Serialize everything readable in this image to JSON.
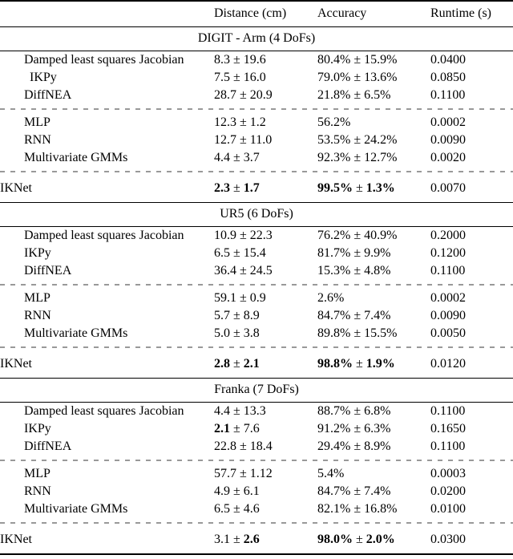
{
  "table": {
    "pm": "±",
    "header": {
      "method": "",
      "distance": "Distance (cm)",
      "accuracy": "Accuracy",
      "runtime": "Runtime (s)"
    },
    "sections": [
      {
        "title": "DIGIT - Arm (4 DoFs)",
        "groups": [
          {
            "rows": [
              {
                "method": "Damped least squares Jacobian",
                "indent": false,
                "distance": {
                  "mean": "8.3",
                  "std": "19.6",
                  "bold": "none"
                },
                "accuracy": {
                  "mean": "80.4%",
                  "std": "15.9%",
                  "bold": "none"
                },
                "runtime": "0.0400"
              },
              {
                "method": "IKPy",
                "indent": true,
                "distance": {
                  "mean": "7.5",
                  "std": "16.0",
                  "bold": "none"
                },
                "accuracy": {
                  "mean": "79.0%",
                  "std": "13.6%",
                  "bold": "none"
                },
                "runtime": "0.0850"
              },
              {
                "method": "DiffNEA",
                "indent": false,
                "distance": {
                  "mean": "28.7",
                  "std": "20.9",
                  "bold": "none"
                },
                "accuracy": {
                  "mean": "21.8%",
                  "std": "6.5%",
                  "bold": "none"
                },
                "runtime": "0.1100"
              }
            ]
          },
          {
            "rows": [
              {
                "method": "MLP",
                "indent": false,
                "distance": {
                  "mean": "12.3",
                  "std": "1.2",
                  "bold": "none"
                },
                "accuracy": {
                  "mean": "56.2%",
                  "std": null,
                  "bold": "none"
                },
                "runtime": "0.0002"
              },
              {
                "method": "RNN",
                "indent": false,
                "distance": {
                  "mean": "12.7",
                  "std": "11.0",
                  "bold": "none"
                },
                "accuracy": {
                  "mean": "53.5%",
                  "std": "24.2%",
                  "bold": "none"
                },
                "runtime": "0.0090"
              },
              {
                "method": "Multivariate GMMs",
                "indent": false,
                "distance": {
                  "mean": "4.4",
                  "std": "3.7",
                  "bold": "none"
                },
                "accuracy": {
                  "mean": "92.3%",
                  "std": "12.7%",
                  "bold": "none"
                },
                "runtime": "0.0020"
              }
            ]
          },
          {
            "rows": [
              {
                "method": "IKNet",
                "indent": false,
                "distance": {
                  "mean": "2.3",
                  "std": "1.7",
                  "bold": "both"
                },
                "accuracy": {
                  "mean": "99.5%",
                  "std": "1.3%",
                  "bold": "both"
                },
                "runtime": "0.0070"
              }
            ]
          }
        ]
      },
      {
        "title": "UR5 (6 DoFs)",
        "groups": [
          {
            "rows": [
              {
                "method": "Damped least squares Jacobian",
                "indent": false,
                "distance": {
                  "mean": "10.9",
                  "std": "22.3",
                  "bold": "none"
                },
                "accuracy": {
                  "mean": "76.2%",
                  "std": "40.9%",
                  "bold": "none"
                },
                "runtime": "0.2000"
              },
              {
                "method": "IKPy",
                "indent": false,
                "distance": {
                  "mean": "6.5",
                  "std": "15.4",
                  "bold": "none"
                },
                "accuracy": {
                  "mean": "81.7%",
                  "std": "9.9%",
                  "bold": "none"
                },
                "runtime": "0.1200"
              },
              {
                "method": "DiffNEA",
                "indent": false,
                "distance": {
                  "mean": "36.4",
                  "std": "24.5",
                  "bold": "none"
                },
                "accuracy": {
                  "mean": "15.3%",
                  "std": "4.8%",
                  "bold": "none"
                },
                "runtime": "0.1100"
              }
            ]
          },
          {
            "rows": [
              {
                "method": "MLP",
                "indent": false,
                "distance": {
                  "mean": "59.1",
                  "std": "0.9",
                  "bold": "none"
                },
                "accuracy": {
                  "mean": "2.6%",
                  "std": null,
                  "bold": "none"
                },
                "runtime": "0.0002"
              },
              {
                "method": "RNN",
                "indent": false,
                "distance": {
                  "mean": "5.7",
                  "std": "8.9",
                  "bold": "none"
                },
                "accuracy": {
                  "mean": "84.7%",
                  "std": "7.4%",
                  "bold": "none"
                },
                "runtime": "0.0090"
              },
              {
                "method": "Multivariate GMMs",
                "indent": false,
                "distance": {
                  "mean": "5.0",
                  "std": "3.8",
                  "bold": "none"
                },
                "accuracy": {
                  "mean": "89.8%",
                  "std": "15.5%",
                  "bold": "none"
                },
                "runtime": "0.0050"
              }
            ]
          },
          {
            "rows": [
              {
                "method": "IKNet",
                "indent": false,
                "distance": {
                  "mean": "2.8",
                  "std": "2.1",
                  "bold": "both"
                },
                "accuracy": {
                  "mean": "98.8%",
                  "std": "1.9%",
                  "bold": "both"
                },
                "runtime": "0.0120"
              }
            ]
          }
        ]
      },
      {
        "title": "Franka (7 DoFs)",
        "groups": [
          {
            "rows": [
              {
                "method": "Damped least squares Jacobian",
                "indent": false,
                "distance": {
                  "mean": "4.4",
                  "std": "13.3",
                  "bold": "none"
                },
                "accuracy": {
                  "mean": "88.7%",
                  "std": "6.8%",
                  "bold": "none"
                },
                "runtime": "0.1100"
              },
              {
                "method": "IKPy",
                "indent": false,
                "distance": {
                  "mean": "2.1",
                  "std": "7.6",
                  "bold": "mean"
                },
                "accuracy": {
                  "mean": "91.2%",
                  "std": "6.3%",
                  "bold": "none"
                },
                "runtime": "0.1650"
              },
              {
                "method": "DiffNEA",
                "indent": false,
                "distance": {
                  "mean": "22.8",
                  "std": "18.4",
                  "bold": "none"
                },
                "accuracy": {
                  "mean": "29.4%",
                  "std": "8.9%",
                  "bold": "none"
                },
                "runtime": "0.1100"
              }
            ]
          },
          {
            "rows": [
              {
                "method": "MLP",
                "indent": false,
                "distance": {
                  "mean": "57.7",
                  "std": "1.12",
                  "bold": "none"
                },
                "accuracy": {
                  "mean": "5.4%",
                  "std": null,
                  "bold": "none"
                },
                "runtime": "0.0003"
              },
              {
                "method": "RNN",
                "indent": false,
                "distance": {
                  "mean": "4.9",
                  "std": "6.1",
                  "bold": "none"
                },
                "accuracy": {
                  "mean": "84.7%",
                  "std": "7.4%",
                  "bold": "none"
                },
                "runtime": "0.0200"
              },
              {
                "method": "Multivariate GMMs",
                "indent": false,
                "distance": {
                  "mean": "6.5",
                  "std": "4.6",
                  "bold": "none"
                },
                "accuracy": {
                  "mean": "82.1%",
                  "std": "16.8%",
                  "bold": "none"
                },
                "runtime": "0.0100"
              }
            ]
          },
          {
            "rows": [
              {
                "method": "IKNet",
                "indent": false,
                "distance": {
                  "mean": "3.1",
                  "std": "2.6",
                  "bold": "std"
                },
                "accuracy": {
                  "mean": "98.0%",
                  "std": "2.0%",
                  "bold": "both"
                },
                "runtime": "0.0300"
              }
            ]
          }
        ]
      }
    ]
  }
}
